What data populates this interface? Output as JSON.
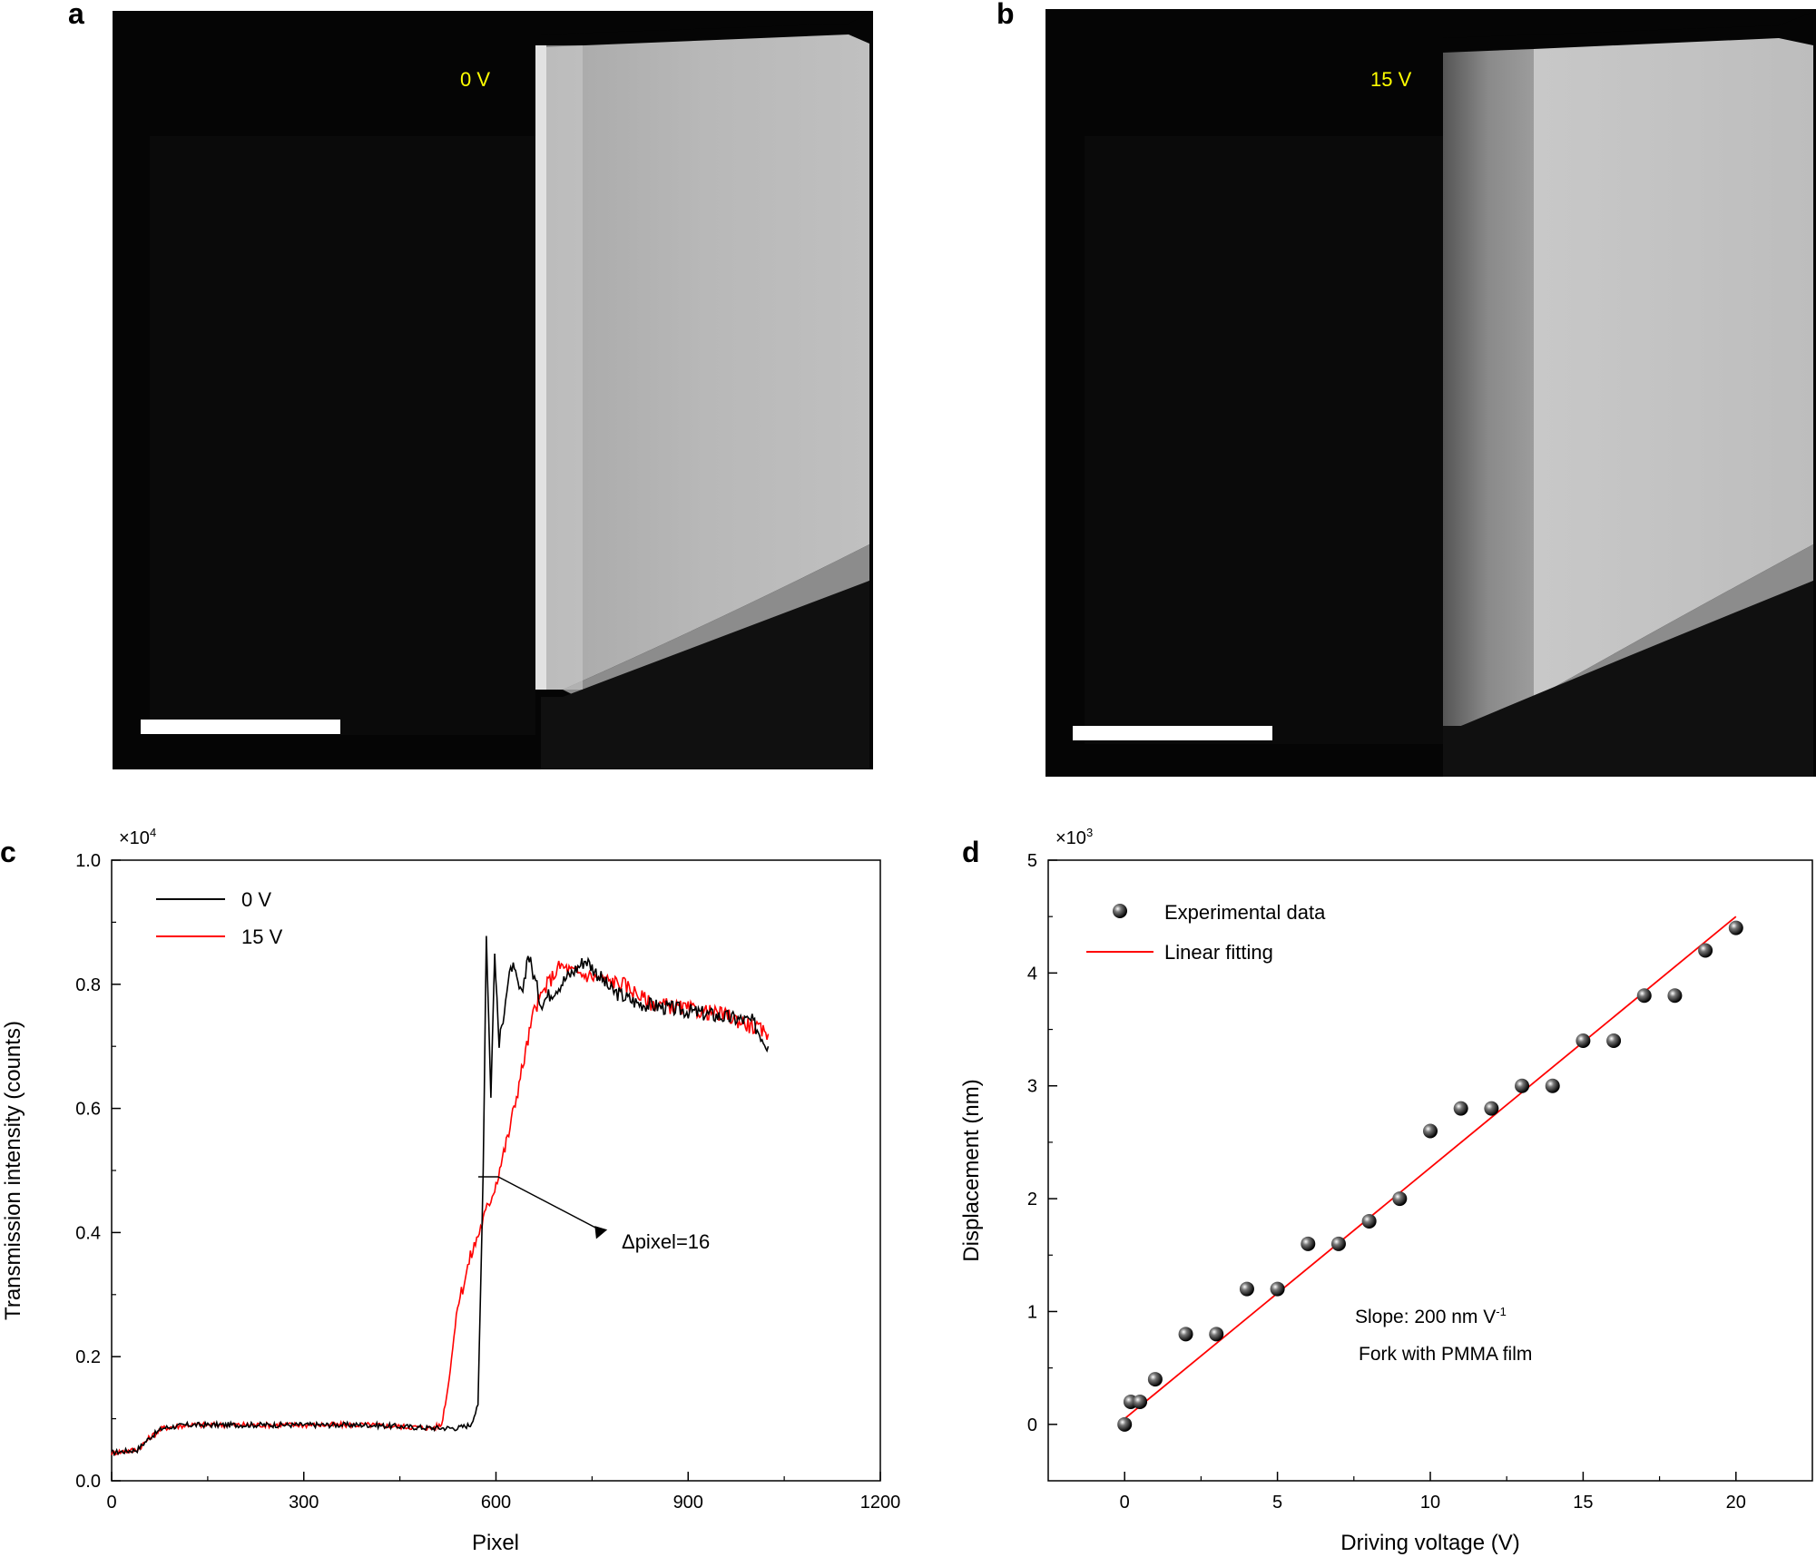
{
  "panels": {
    "a": {
      "label": "a",
      "voltage_label": "0 V",
      "label_color": "#ffff00",
      "edge_position_note": "sharp vertical edge"
    },
    "b": {
      "label": "b",
      "voltage_label": "15 V",
      "label_color": "#ffff00"
    }
  },
  "chart_data": [
    {
      "id": "c",
      "panel_label": "c",
      "type": "line",
      "title": "",
      "xlabel": "Pixel",
      "ylabel": "Transmission intensity (counts)",
      "y_multiplier": "×10",
      "y_multiplier_exp": "4",
      "xlim": [
        0,
        1200
      ],
      "ylim": [
        0.0,
        1.0
      ],
      "xticks": [
        0,
        300,
        600,
        900,
        1200
      ],
      "xtick_labels": [
        "0",
        "300",
        "600",
        "900",
        "1200"
      ],
      "yticks": [
        0.0,
        0.2,
        0.4,
        0.6,
        0.8,
        1.0
      ],
      "ytick_labels": [
        "0.0",
        "0.2",
        "0.4",
        "0.6",
        "0.8",
        "1.0"
      ],
      "legend_position": "top-left",
      "annotation": "Δpixel=16",
      "series": [
        {
          "name": "0 V",
          "color": "#000000",
          "points": [
            [
              0,
              0.045
            ],
            [
              40,
              0.05
            ],
            [
              60,
              0.07
            ],
            [
              80,
              0.085
            ],
            [
              120,
              0.09
            ],
            [
              200,
              0.09
            ],
            [
              300,
              0.09
            ],
            [
              400,
              0.09
            ],
            [
              500,
              0.085
            ],
            [
              540,
              0.085
            ],
            [
              560,
              0.09
            ],
            [
              572,
              0.12
            ],
            [
              580,
              0.5
            ],
            [
              585,
              0.88
            ],
            [
              592,
              0.62
            ],
            [
              598,
              0.85
            ],
            [
              605,
              0.7
            ],
            [
              615,
              0.78
            ],
            [
              625,
              0.83
            ],
            [
              640,
              0.78
            ],
            [
              650,
              0.85
            ],
            [
              670,
              0.77
            ],
            [
              700,
              0.8
            ],
            [
              740,
              0.84
            ],
            [
              780,
              0.79
            ],
            [
              820,
              0.77
            ],
            [
              880,
              0.76
            ],
            [
              940,
              0.75
            ],
            [
              1000,
              0.74
            ],
            [
              1025,
              0.7
            ]
          ]
        },
        {
          "name": "15 V",
          "color": "#ff0000",
          "points": [
            [
              0,
              0.045
            ],
            [
              40,
              0.05
            ],
            [
              60,
              0.07
            ],
            [
              80,
              0.085
            ],
            [
              120,
              0.09
            ],
            [
              200,
              0.09
            ],
            [
              300,
              0.09
            ],
            [
              400,
              0.09
            ],
            [
              500,
              0.085
            ],
            [
              515,
              0.09
            ],
            [
              525,
              0.15
            ],
            [
              540,
              0.28
            ],
            [
              560,
              0.36
            ],
            [
              580,
              0.42
            ],
            [
              600,
              0.48
            ],
            [
              620,
              0.56
            ],
            [
              640,
              0.66
            ],
            [
              660,
              0.76
            ],
            [
              680,
              0.8
            ],
            [
              700,
              0.83
            ],
            [
              720,
              0.82
            ],
            [
              760,
              0.81
            ],
            [
              800,
              0.8
            ],
            [
              840,
              0.77
            ],
            [
              900,
              0.76
            ],
            [
              960,
              0.75
            ],
            [
              1025,
              0.72
            ]
          ]
        }
      ]
    },
    {
      "id": "d",
      "panel_label": "d",
      "type": "scatter",
      "title": "",
      "xlabel": "Driving voltage (V)",
      "ylabel": "Displacement (nm)",
      "y_multiplier": "×10",
      "y_multiplier_exp": "3",
      "xlim": [
        -2.5,
        22.5
      ],
      "ylim": [
        -0.5,
        5
      ],
      "xticks": [
        0,
        5,
        10,
        15,
        20
      ],
      "xtick_labels": [
        "0",
        "5",
        "10",
        "15",
        "20"
      ],
      "yticks": [
        0,
        1,
        2,
        3,
        4,
        5
      ],
      "ytick_labels": [
        "0",
        "1",
        "2",
        "3",
        "4",
        "5"
      ],
      "legend_position": "top-left",
      "legend": [
        "Experimental data",
        "Linear fitting"
      ],
      "annotations": [
        "Slope: 200 nm V",
        "-1",
        "Fork with PMMA film"
      ],
      "series": [
        {
          "name": "Experimental data",
          "x": [
            0,
            0.2,
            0.5,
            1,
            2,
            3,
            4,
            5,
            6,
            7,
            8,
            9,
            10,
            11,
            12,
            13,
            14,
            15,
            16,
            17,
            18,
            19,
            20
          ],
          "y": [
            0,
            0.2,
            0.2,
            0.4,
            0.8,
            0.8,
            1.2,
            1.2,
            1.6,
            1.6,
            1.8,
            2.0,
            2.6,
            2.8,
            2.8,
            3.0,
            3.0,
            3.4,
            3.4,
            3.8,
            3.8,
            4.2,
            4.4
          ]
        },
        {
          "name": "Linear fitting",
          "color": "#ff0000",
          "x": [
            0,
            20
          ],
          "y": [
            0.05,
            4.5
          ]
        }
      ]
    }
  ]
}
